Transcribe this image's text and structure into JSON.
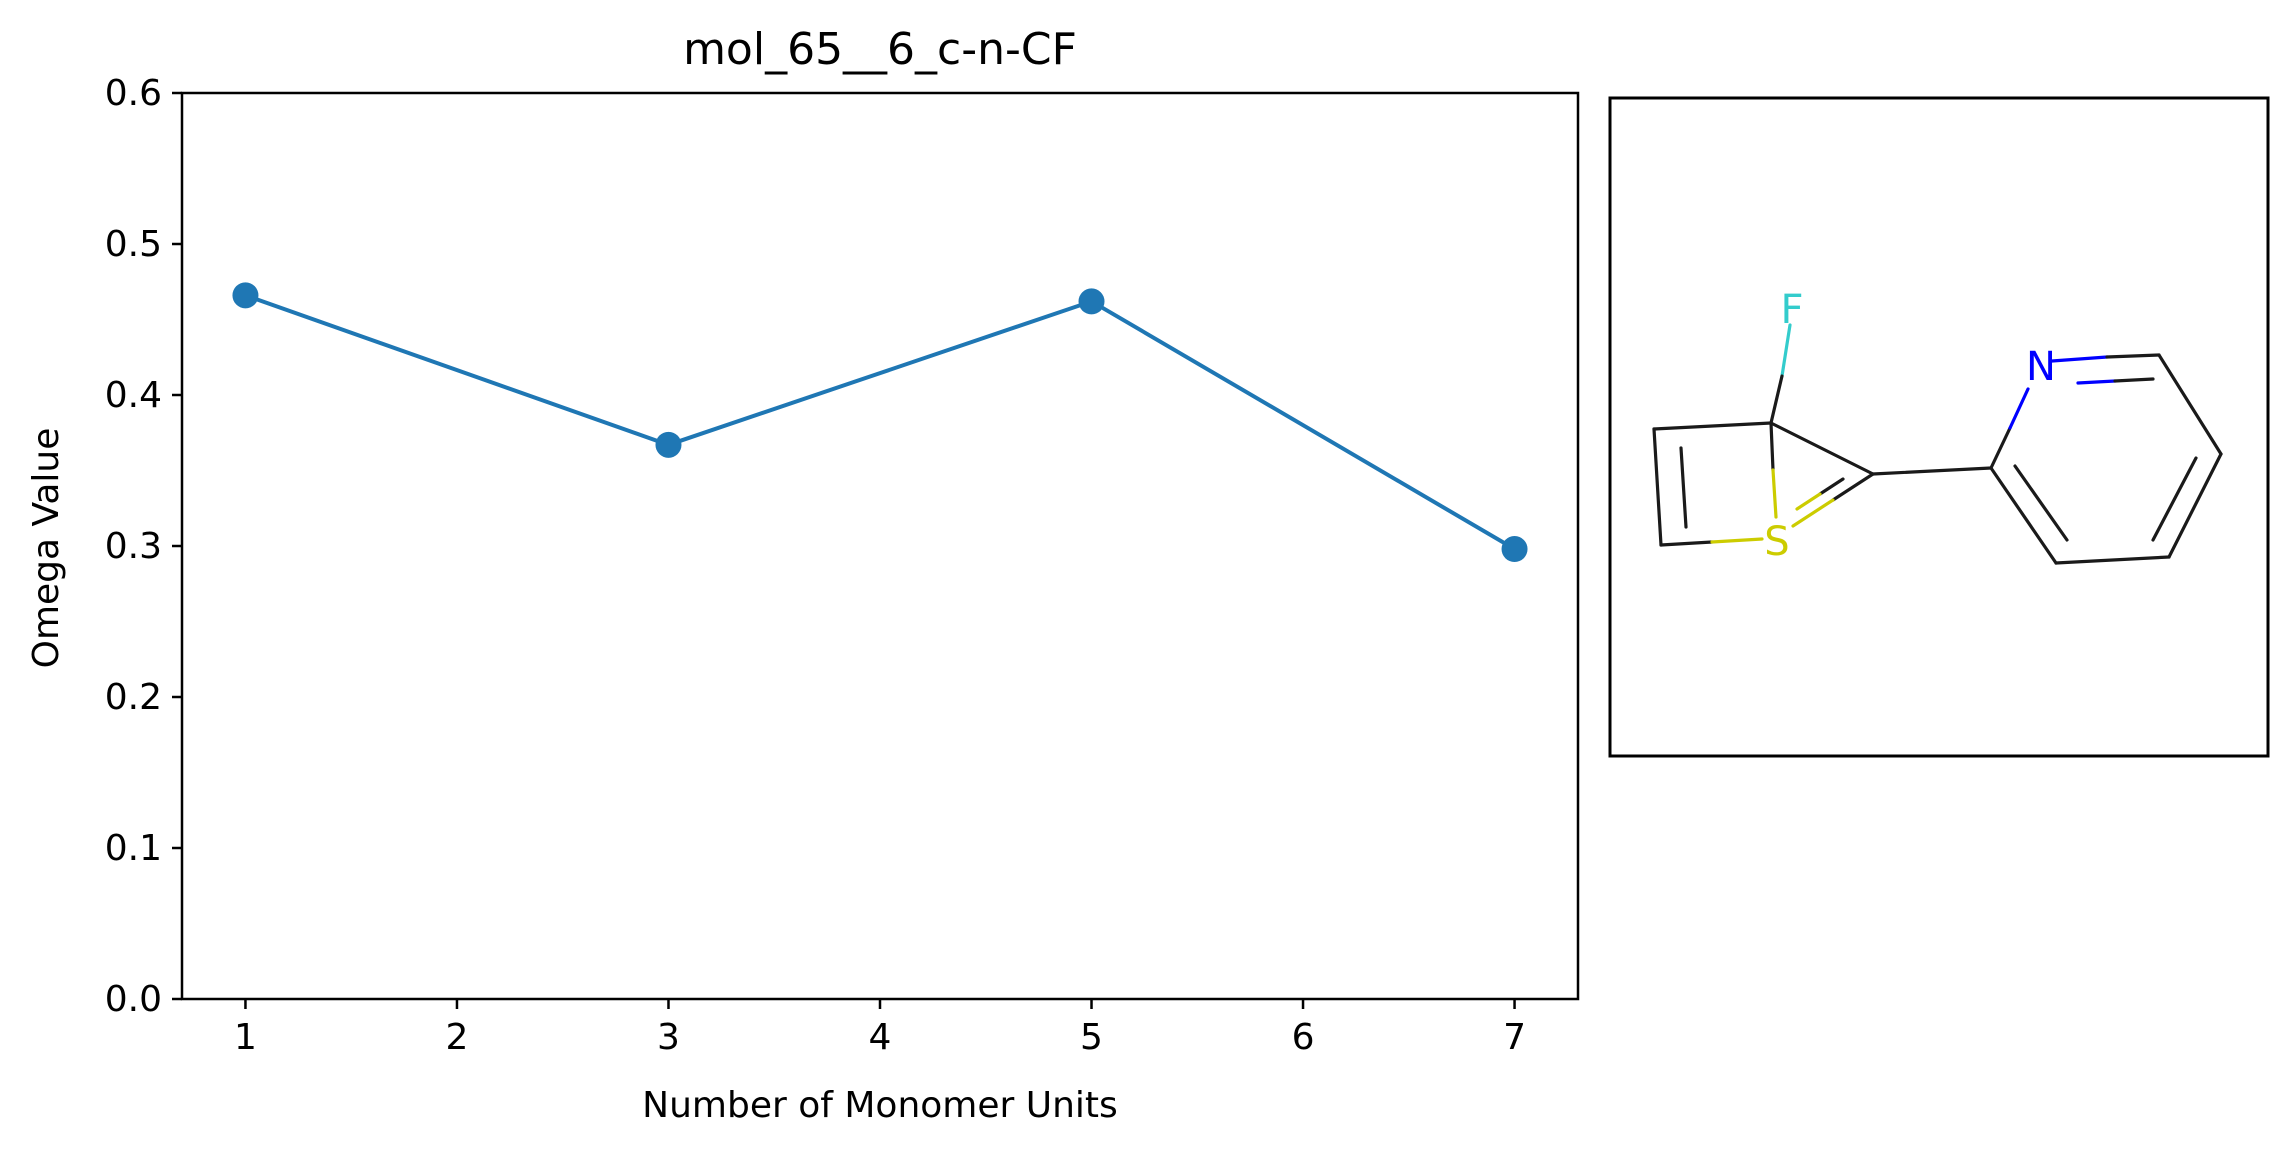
{
  "chart_data": {
    "type": "line",
    "title": "mol_65__6_c-n-CF",
    "xlabel": "Number of Monomer Units",
    "ylabel": "Omega Value",
    "x": [
      1,
      3,
      5,
      7
    ],
    "y": [
      0.466,
      0.367,
      0.462,
      0.298
    ],
    "xlim": [
      0.7,
      7.3
    ],
    "ylim": [
      0.0,
      0.6
    ],
    "x_ticks": [
      1,
      2,
      3,
      4,
      5,
      6,
      7
    ],
    "y_ticks": [
      0.0,
      0.1,
      0.2,
      0.3,
      0.4,
      0.5,
      0.6
    ],
    "x_tick_labels": [
      "1",
      "2",
      "3",
      "4",
      "5",
      "6",
      "7"
    ],
    "y_tick_labels": [
      "0.0",
      "0.1",
      "0.2",
      "0.3",
      "0.4",
      "0.5",
      "0.6"
    ],
    "grid": false,
    "series_color": "#1f77b4"
  },
  "molecule": {
    "atoms": {
      "fluorine": "F",
      "nitrogen": "N",
      "sulfur": "S"
    },
    "colors": {
      "bond": "#1a1a1a",
      "fluorine": "#33cccc",
      "nitrogen": "#0000ff",
      "sulfur": "#cccc00"
    }
  }
}
